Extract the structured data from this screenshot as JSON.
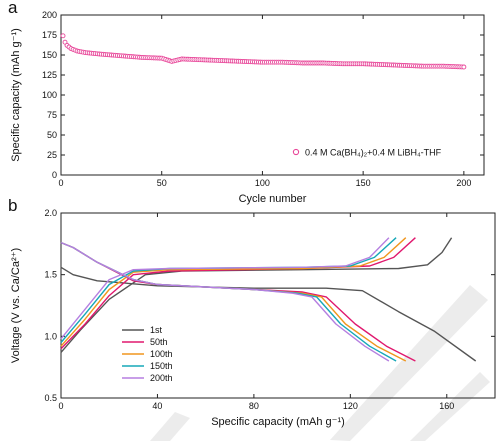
{
  "chart_data": [
    {
      "panel": "a",
      "type": "scatter",
      "xlabel": "Cycle number",
      "ylabel": "Specific capacity (mAh g⁻¹)",
      "xlim": [
        0,
        210
      ],
      "ylim": [
        0,
        200
      ],
      "xticks": [
        "0",
        "50",
        "100",
        "150",
        "200"
      ],
      "yticks": [
        "0",
        "25",
        "50",
        "75",
        "100",
        "125",
        "150",
        "175",
        "200"
      ],
      "legend_position": "bottom-right",
      "grid": false,
      "series": [
        {
          "name": "0.4 M Ca(BH₄)₂+0.4 M LiBH₄-THF",
          "color": "#e8489a",
          "marker": "open-circle",
          "x": [
            1,
            2,
            3,
            5,
            8,
            12,
            20,
            30,
            40,
            50,
            55,
            60,
            70,
            80,
            90,
            100,
            110,
            120,
            130,
            140,
            150,
            160,
            170,
            180,
            190,
            200
          ],
          "y": [
            174,
            166,
            162,
            158,
            155,
            153,
            151,
            149,
            147,
            146,
            142,
            145,
            144,
            143,
            142,
            141,
            141,
            140,
            140,
            139,
            139,
            138,
            137,
            136,
            136,
            135
          ]
        }
      ]
    },
    {
      "panel": "b",
      "type": "line",
      "xlabel": "Specific capacity (mAh g⁻¹)",
      "ylabel": "Voltage (V vs. Ca/Ca²⁺)",
      "xlim": [
        0,
        180
      ],
      "ylim": [
        0.5,
        2.0
      ],
      "xticks": [
        "0",
        "40",
        "80",
        "120",
        "160"
      ],
      "yticks": [
        "0.5",
        "1.0",
        "1.5",
        "2.0"
      ],
      "legend_position": "bottom-left",
      "grid": false,
      "series": [
        {
          "name": "1st",
          "color": "#555555",
          "discharge": [
            [
              0,
              1.56
            ],
            [
              5,
              1.5
            ],
            [
              15,
              1.45
            ],
            [
              40,
              1.41
            ],
            [
              80,
              1.39
            ],
            [
              110,
              1.39
            ],
            [
              125,
              1.37
            ],
            [
              140,
              1.2
            ],
            [
              155,
              1.04
            ],
            [
              172,
              0.8
            ]
          ],
          "charge": [
            [
              0,
              0.87
            ],
            [
              8,
              1.05
            ],
            [
              20,
              1.3
            ],
            [
              35,
              1.5
            ],
            [
              50,
              1.53
            ],
            [
              100,
              1.54
            ],
            [
              140,
              1.55
            ],
            [
              152,
              1.58
            ],
            [
              158,
              1.68
            ],
            [
              162,
              1.8
            ]
          ]
        },
        {
          "name": "50th",
          "color": "#e0186e",
          "discharge": [
            [
              0,
              1.76
            ],
            [
              5,
              1.72
            ],
            [
              15,
              1.6
            ],
            [
              30,
              1.45
            ],
            [
              40,
              1.42
            ],
            [
              80,
              1.38
            ],
            [
              100,
              1.36
            ],
            [
              110,
              1.32
            ],
            [
              122,
              1.1
            ],
            [
              135,
              0.92
            ],
            [
              147,
              0.8
            ]
          ],
          "charge": [
            [
              0,
              0.9
            ],
            [
              10,
              1.1
            ],
            [
              20,
              1.33
            ],
            [
              30,
              1.5
            ],
            [
              45,
              1.53
            ],
            [
              100,
              1.55
            ],
            [
              128,
              1.57
            ],
            [
              138,
              1.64
            ],
            [
              147,
              1.8
            ]
          ]
        },
        {
          "name": "100th",
          "color": "#f0961e",
          "discharge": [
            [
              0,
              1.76
            ],
            [
              5,
              1.72
            ],
            [
              15,
              1.6
            ],
            [
              30,
              1.46
            ],
            [
              40,
              1.42
            ],
            [
              80,
              1.38
            ],
            [
              100,
              1.35
            ],
            [
              108,
              1.32
            ],
            [
              118,
              1.1
            ],
            [
              131,
              0.92
            ],
            [
              143,
              0.8
            ]
          ],
          "charge": [
            [
              0,
              0.92
            ],
            [
              10,
              1.14
            ],
            [
              20,
              1.38
            ],
            [
              30,
              1.52
            ],
            [
              45,
              1.54
            ],
            [
              100,
              1.55
            ],
            [
              124,
              1.57
            ],
            [
              134,
              1.64
            ],
            [
              143,
              1.8
            ]
          ]
        },
        {
          "name": "150th",
          "color": "#16a8b8",
          "discharge": [
            [
              0,
              1.76
            ],
            [
              5,
              1.72
            ],
            [
              15,
              1.6
            ],
            [
              30,
              1.46
            ],
            [
              40,
              1.42
            ],
            [
              80,
              1.38
            ],
            [
              98,
              1.35
            ],
            [
              106,
              1.32
            ],
            [
              116,
              1.1
            ],
            [
              128,
              0.92
            ],
            [
              139,
              0.8
            ]
          ],
          "charge": [
            [
              0,
              0.95
            ],
            [
              10,
              1.18
            ],
            [
              20,
              1.42
            ],
            [
              30,
              1.53
            ],
            [
              45,
              1.55
            ],
            [
              100,
              1.56
            ],
            [
              120,
              1.57
            ],
            [
              130,
              1.64
            ],
            [
              139,
              1.8
            ]
          ]
        },
        {
          "name": "200th",
          "color": "#b57fe0",
          "discharge": [
            [
              0,
              1.76
            ],
            [
              5,
              1.72
            ],
            [
              15,
              1.6
            ],
            [
              30,
              1.46
            ],
            [
              40,
              1.42
            ],
            [
              80,
              1.38
            ],
            [
              96,
              1.35
            ],
            [
              104,
              1.32
            ],
            [
              114,
              1.1
            ],
            [
              126,
              0.92
            ],
            [
              136,
              0.8
            ]
          ],
          "charge": [
            [
              0,
              0.98
            ],
            [
              10,
              1.22
            ],
            [
              20,
              1.46
            ],
            [
              30,
              1.54
            ],
            [
              45,
              1.55
            ],
            [
              100,
              1.56
            ],
            [
              118,
              1.57
            ],
            [
              128,
              1.64
            ],
            [
              136,
              1.8
            ]
          ]
        }
      ]
    }
  ]
}
